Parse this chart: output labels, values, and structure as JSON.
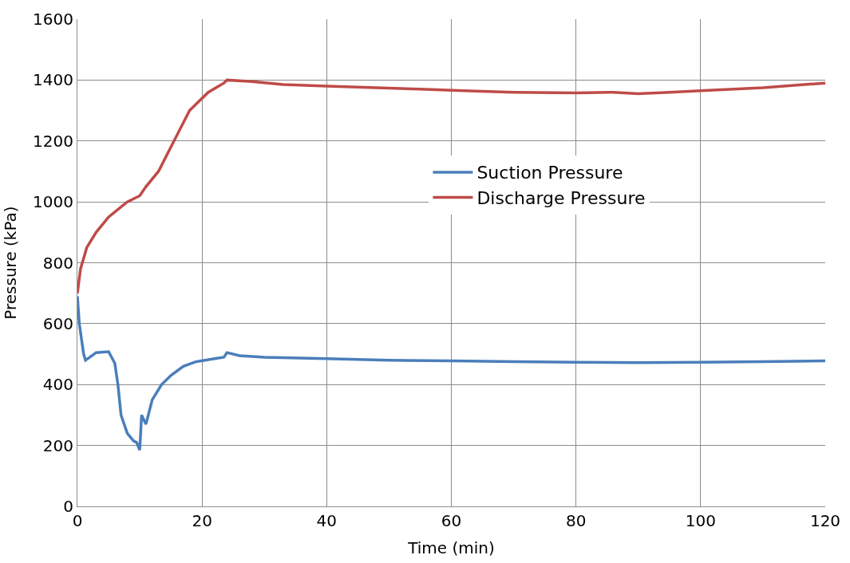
{
  "chart_data": {
    "type": "line",
    "xlabel": "Time (min)",
    "ylabel": "Pressure (kPa)",
    "xlim": [
      0,
      120
    ],
    "xticks": [
      0,
      20,
      40,
      60,
      80,
      100,
      120
    ],
    "ylim": [
      0,
      1600
    ],
    "yticks": [
      0,
      200,
      400,
      600,
      800,
      1000,
      1200,
      1400,
      1600
    ],
    "grid": true,
    "legend": "right",
    "marker": "none",
    "line_style": "solid",
    "series": [
      {
        "name": "Suction Pressure",
        "color": "#4a7ebb",
        "x": [
          0,
          0.3,
          1,
          1.3,
          2,
          3,
          5,
          6,
          6.5,
          7,
          8,
          9,
          9.5,
          10,
          10.3,
          11,
          12,
          13.5,
          15,
          17,
          19,
          22,
          23.5,
          24,
          26,
          30,
          40,
          50,
          60,
          70,
          80,
          90,
          100,
          110,
          120
        ],
        "values": [
          690,
          600,
          500,
          480,
          490,
          505,
          508,
          470,
          400,
          300,
          240,
          215,
          210,
          185,
          300,
          270,
          350,
          400,
          430,
          460,
          475,
          485,
          490,
          505,
          495,
          490,
          485,
          480,
          478,
          475,
          473,
          472,
          473,
          475,
          478
        ]
      },
      {
        "name": "Discharge Pressure",
        "color": "#be4b48",
        "x": [
          0,
          0.5,
          1.5,
          3,
          5,
          8,
          10,
          11,
          13,
          15.5,
          18,
          21,
          23.5,
          24,
          28,
          33,
          40,
          55,
          62,
          70,
          80,
          86,
          90,
          95,
          100,
          110,
          120
        ],
        "values": [
          700,
          780,
          850,
          900,
          950,
          1000,
          1020,
          1050,
          1100,
          1200,
          1300,
          1360,
          1390,
          1400,
          1395,
          1385,
          1380,
          1370,
          1365,
          1360,
          1358,
          1360,
          1355,
          1360,
          1365,
          1375,
          1390
        ]
      }
    ]
  }
}
